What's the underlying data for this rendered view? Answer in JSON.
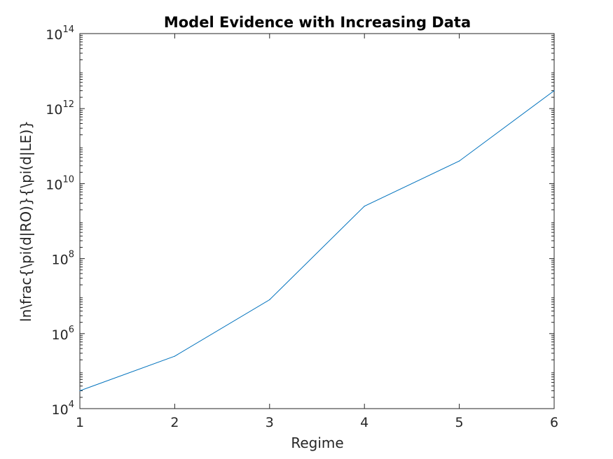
{
  "chart_data": {
    "type": "line",
    "title": "Model Evidence with Increasing Data",
    "xlabel": "Regime",
    "ylabel": "ln\\frac{\\pi(d|RO)}{\\pi(d|LE)}",
    "x": [
      1,
      2,
      3,
      4,
      5,
      6
    ],
    "series": [
      {
        "values": [
          30000,
          250000,
          8000000,
          2500000000,
          40000000000,
          3000000000000
        ]
      }
    ],
    "xlim": [
      1,
      6
    ],
    "ylim": [
      10000,
      100000000000000
    ],
    "yscale": "log",
    "x_ticks": [
      "1",
      "2",
      "3",
      "4",
      "5",
      "6"
    ],
    "y_ticks": [
      {
        "base": "10",
        "exp": "4",
        "value": 10000
      },
      {
        "base": "10",
        "exp": "6",
        "value": 1000000
      },
      {
        "base": "10",
        "exp": "8",
        "value": 100000000
      },
      {
        "base": "10",
        "exp": "10",
        "value": 10000000000
      },
      {
        "base": "10",
        "exp": "12",
        "value": 1000000000000
      },
      {
        "base": "10",
        "exp": "14",
        "value": 100000000000000
      }
    ],
    "grid": false,
    "line_color": "#0072BD",
    "axis_color": "#262626"
  }
}
